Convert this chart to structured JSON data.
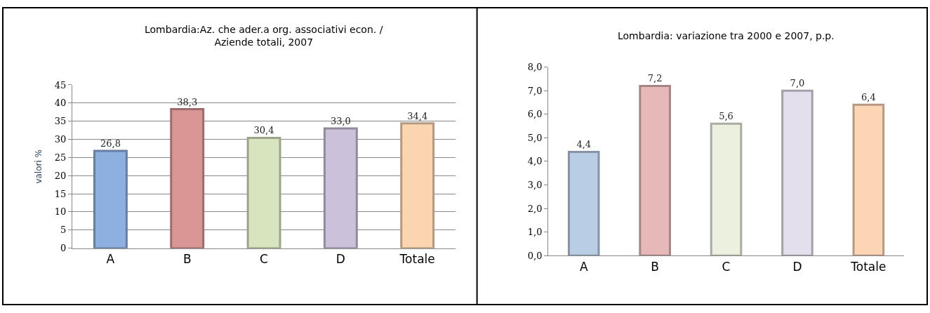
{
  "chart_data": [
    {
      "type": "bar",
      "title": "Lombardia:Az. che ader.a org. associativi econ. / Aziende totali, 2007",
      "ylabel": "valori %",
      "categories": [
        "A",
        "B",
        "C",
        "D",
        "Totale"
      ],
      "values": [
        26.8,
        38.3,
        30.4,
        33.0,
        34.4
      ],
      "value_labels": [
        "26,8",
        "38,3",
        "30,4",
        "33,0",
        "34,4"
      ],
      "colors": [
        "#8eb0e0",
        "#d99694",
        "#d7e4bd",
        "#ccc1da",
        "#fad5b0"
      ],
      "ylim": [
        0,
        45
      ],
      "yticks": [
        0,
        5,
        10,
        15,
        20,
        25,
        30,
        35,
        40,
        45
      ],
      "grid": "y"
    },
    {
      "type": "bar",
      "title": "Lombardia: variazione tra 2000 e 2007, p.p.",
      "categories": [
        "A",
        "B",
        "C",
        "D",
        "Totale"
      ],
      "values": [
        4.4,
        7.2,
        5.6,
        7.0,
        6.4
      ],
      "value_labels": [
        "4,4",
        "7,2",
        "5,6",
        "7,0",
        "6,4"
      ],
      "colors": [
        "#b9cde5",
        "#e6b9b8",
        "#ebf1de",
        "#e4dfec",
        "#fcd5b5"
      ],
      "ylim": [
        0,
        8
      ],
      "yticks": [
        {
          "value": 0,
          "label": "0,0"
        },
        {
          "value": 1,
          "label": "1,0"
        },
        {
          "value": 2,
          "label": "2,0"
        },
        {
          "value": 3,
          "label": "3,0"
        },
        {
          "value": 4,
          "label": "4,0"
        },
        {
          "value": 5,
          "label": "5,0"
        },
        {
          "value": 6,
          "label": "6,0"
        },
        {
          "value": 7,
          "label": "7,0"
        },
        {
          "value": 8,
          "label": "8,0"
        }
      ]
    }
  ]
}
